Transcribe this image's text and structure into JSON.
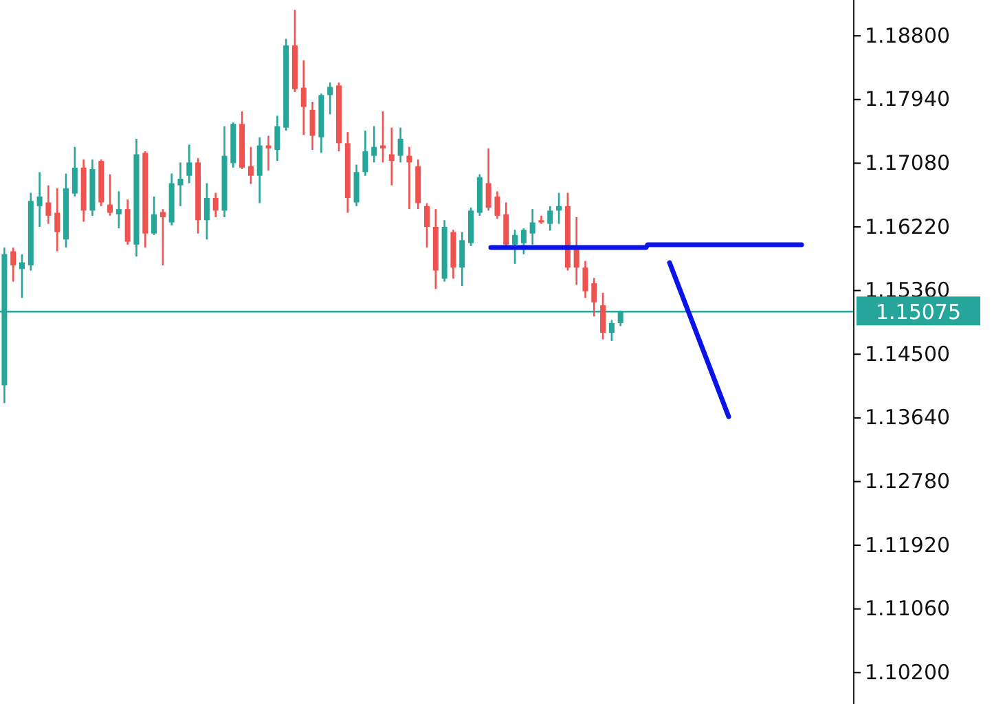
{
  "chart_data": {
    "type": "candlestick",
    "categories": [
      null,
      null,
      null,
      null,
      null,
      null,
      null,
      null,
      null,
      null,
      null,
      null,
      null,
      null,
      null,
      null,
      null,
      null,
      null,
      null,
      null,
      null,
      null,
      null,
      null,
      null,
      null,
      null,
      null,
      null,
      null,
      null,
      null,
      null,
      null,
      null,
      null,
      null,
      null,
      null,
      null,
      null,
      null,
      null,
      null,
      null,
      null,
      null,
      null,
      null,
      null,
      null,
      null,
      null,
      null,
      null,
      null,
      null,
      null,
      null,
      null,
      null,
      null,
      null,
      null,
      null,
      null,
      null,
      null,
      null,
      null,
      null,
      null,
      null,
      null,
      null,
      null,
      null,
      null,
      null,
      null,
      null,
      null,
      null,
      null,
      null,
      null,
      null,
      null,
      null,
      null,
      null,
      null,
      null,
      null,
      null,
      null
    ],
    "ohlc": [
      [
        1.1408,
        1.1594,
        1.1384,
        1.1585
      ],
      [
        1.1589,
        1.1594,
        1.1548,
        1.157
      ],
      [
        1.1565,
        1.1585,
        1.1526,
        1.1574
      ],
      [
        1.157,
        1.1668,
        1.1563,
        1.1657
      ],
      [
        1.165,
        1.1696,
        1.1622,
        1.1663
      ],
      [
        1.1655,
        1.1678,
        1.1626,
        1.1637
      ],
      [
        1.1641,
        1.1674,
        1.1589,
        1.1615
      ],
      [
        1.1605,
        1.1694,
        1.1594,
        1.1674
      ],
      [
        1.1667,
        1.173,
        1.1663,
        1.1702
      ],
      [
        1.1702,
        1.1713,
        1.1629,
        1.1644
      ],
      [
        1.1644,
        1.1713,
        1.1637,
        1.17
      ],
      [
        1.1711,
        1.1713,
        1.165,
        1.1655
      ],
      [
        1.1652,
        1.1693,
        1.1637,
        1.1641
      ],
      [
        1.1639,
        1.167,
        1.162,
        1.1646
      ],
      [
        1.1646,
        1.1659,
        1.1598,
        1.1602
      ],
      [
        1.1598,
        1.1741,
        1.1582,
        1.172
      ],
      [
        1.1722,
        1.1724,
        1.1594,
        1.1613
      ],
      [
        1.1613,
        1.1663,
        1.1611,
        1.1639
      ],
      [
        1.1642,
        1.1646,
        1.157,
        1.1635
      ],
      [
        1.1628,
        1.1694,
        1.1624,
        1.1681
      ],
      [
        1.1678,
        1.1709,
        1.165,
        1.1687
      ],
      [
        1.1691,
        1.1733,
        1.1681,
        1.1709
      ],
      [
        1.1709,
        1.1715,
        1.1613,
        1.1631
      ],
      [
        1.1631,
        1.1681,
        1.1605,
        1.1661
      ],
      [
        1.1661,
        1.1668,
        1.1635,
        1.1644
      ],
      [
        1.1644,
        1.1758,
        1.1635,
        1.1718
      ],
      [
        1.1708,
        1.1763,
        1.1702,
        1.1761
      ],
      [
        1.1761,
        1.1778,
        1.17,
        1.1702
      ],
      [
        1.1704,
        1.173,
        1.168,
        1.1691
      ],
      [
        1.1691,
        1.1743,
        1.1654,
        1.1732
      ],
      [
        1.1732,
        1.1745,
        1.1698,
        1.1728
      ],
      [
        1.1726,
        1.1772,
        1.1711,
        1.1758
      ],
      [
        1.1756,
        1.1876,
        1.1752,
        1.1867
      ],
      [
        1.1867,
        1.1915,
        1.1804,
        1.1808
      ],
      [
        1.181,
        1.1847,
        1.1746,
        1.1784
      ],
      [
        1.178,
        1.1791,
        1.1726,
        1.1745
      ],
      [
        1.1743,
        1.1802,
        1.1722,
        1.18
      ],
      [
        1.18,
        1.1817,
        1.1774,
        1.1811
      ],
      [
        1.1813,
        1.1817,
        1.1724,
        1.1735
      ],
      [
        1.1735,
        1.175,
        1.1641,
        1.1661
      ],
      [
        1.1655,
        1.1706,
        1.165,
        1.1696
      ],
      [
        1.1696,
        1.1752,
        1.1691,
        1.1724
      ],
      [
        1.1718,
        1.1758,
        1.1709,
        1.173
      ],
      [
        1.1732,
        1.1778,
        1.1709,
        1.1728
      ],
      [
        1.172,
        1.1756,
        1.1678,
        1.1711
      ],
      [
        1.1718,
        1.1756,
        1.1709,
        1.1741
      ],
      [
        1.1718,
        1.173,
        1.1646,
        1.1709
      ],
      [
        1.1704,
        1.1713,
        1.1646,
        1.1654
      ],
      [
        1.165,
        1.1654,
        1.1594,
        1.1622
      ],
      [
        1.1622,
        1.1646,
        1.1538,
        1.1563
      ],
      [
        1.1552,
        1.1631,
        1.1548,
        1.1622
      ],
      [
        1.1615,
        1.1618,
        1.1552,
        1.1567
      ],
      [
        1.1567,
        1.1615,
        1.1542,
        1.1604
      ],
      [
        1.16,
        1.1648,
        1.1596,
        1.1644
      ],
      [
        1.1641,
        1.1693,
        1.1637,
        1.1689
      ],
      [
        1.1681,
        1.1728,
        1.1644,
        1.1648
      ],
      [
        1.1663,
        1.167,
        1.1633,
        1.1637
      ],
      [
        1.1639,
        1.1655,
        1.1594,
        1.1598
      ],
      [
        1.1598,
        1.1618,
        1.1572,
        1.1611
      ],
      [
        1.16,
        1.162,
        1.1585,
        1.1618
      ],
      [
        1.1613,
        1.1646,
        1.1598,
        1.1628
      ],
      [
        1.1631,
        1.1637,
        1.1626,
        1.1628
      ],
      [
        1.1626,
        1.165,
        1.1617,
        1.1644
      ],
      [
        1.1644,
        1.1668,
        1.1626,
        1.165
      ],
      [
        1.165,
        1.1668,
        1.1563,
        1.1567
      ],
      [
        1.1594,
        1.1635,
        1.1544,
        1.1567
      ],
      [
        1.1567,
        1.1576,
        1.1526,
        1.1535
      ],
      [
        1.1546,
        1.1553,
        1.1501,
        1.152
      ],
      [
        1.1516,
        1.1533,
        1.147,
        1.1479
      ],
      [
        1.1479,
        1.1496,
        1.1468,
        1.1492
      ],
      [
        1.1492,
        1.1509,
        1.1488,
        1.15075
      ],
      null,
      null,
      null,
      null,
      null,
      null,
      null,
      null,
      null,
      null,
      null,
      null,
      null,
      null,
      null,
      null,
      null,
      null,
      null,
      null,
      null,
      null,
      null,
      null,
      null,
      null
    ],
    "colors": [
      "#26a69a",
      "#ef5350",
      "#26a69a",
      "#26a69a",
      "#26a69a",
      "#ef5350",
      "#ef5350",
      "#26a69a",
      "#26a69a",
      "#ef5350",
      "#26a69a",
      "#ef5350",
      "#ef5350",
      "#26a69a",
      "#ef5350",
      "#26a69a",
      "#ef5350",
      "#26a69a",
      "#ef5350",
      "#26a69a",
      "#26a69a",
      "#26a69a",
      "#ef5350",
      "#26a69a",
      "#ef5350",
      "#26a69a",
      "#26a69a",
      "#ef5350",
      "#ef5350",
      "#26a69a",
      "#ef5350",
      "#26a69a",
      "#26a69a",
      "#ef5350",
      "#ef5350",
      "#ef5350",
      "#26a69a",
      "#26a69a",
      "#ef5350",
      "#ef5350",
      "#26a69a",
      "#26a69a",
      "#26a69a",
      "#ef5350",
      "#ef5350",
      "#26a69a",
      "#ef5350",
      "#ef5350",
      "#ef5350",
      "#ef5350",
      "#26a69a",
      "#ef5350",
      "#26a69a",
      "#26a69a",
      "#26a69a",
      "#ef5350",
      "#ef5350",
      "#ef5350",
      "#26a69a",
      "#26a69a",
      "#26a69a",
      "#ef5350",
      "#26a69a",
      "#26a69a",
      "#ef5350",
      "#ef5350",
      "#ef5350",
      "#ef5350",
      "#ef5350",
      "#26a69a",
      "#26a69a",
      null,
      null,
      null,
      null,
      null,
      null,
      null,
      null,
      null,
      null,
      null,
      null,
      null,
      null,
      null,
      null,
      null,
      null,
      null,
      null,
      null,
      null,
      null,
      null,
      null,
      null
    ],
    "ylim": [
      1.09776,
      1.19284
    ],
    "yticks": [
      {
        "value": 1.188,
        "label": "1.18800"
      },
      {
        "value": 1.1794,
        "label": "1.17940"
      },
      {
        "value": 1.1708,
        "label": "1.17080"
      },
      {
        "value": 1.1622,
        "label": "1.16220"
      },
      {
        "value": 1.1536,
        "label": "1.15360"
      },
      {
        "value": 1.145,
        "label": "1.14500"
      },
      {
        "value": 1.1364,
        "label": "1.13640"
      },
      {
        "value": 1.1278,
        "label": "1.12780"
      },
      {
        "value": 1.1192,
        "label": "1.11920"
      },
      {
        "value": 1.1106,
        "label": "1.11060"
      },
      {
        "value": 1.102,
        "label": "1.10200"
      }
    ],
    "ref_lines": [
      {
        "axis": "y",
        "value": 1.15075,
        "label": "1.15075",
        "color": "#26a69a"
      }
    ],
    "tick_labels": "y"
  }
}
